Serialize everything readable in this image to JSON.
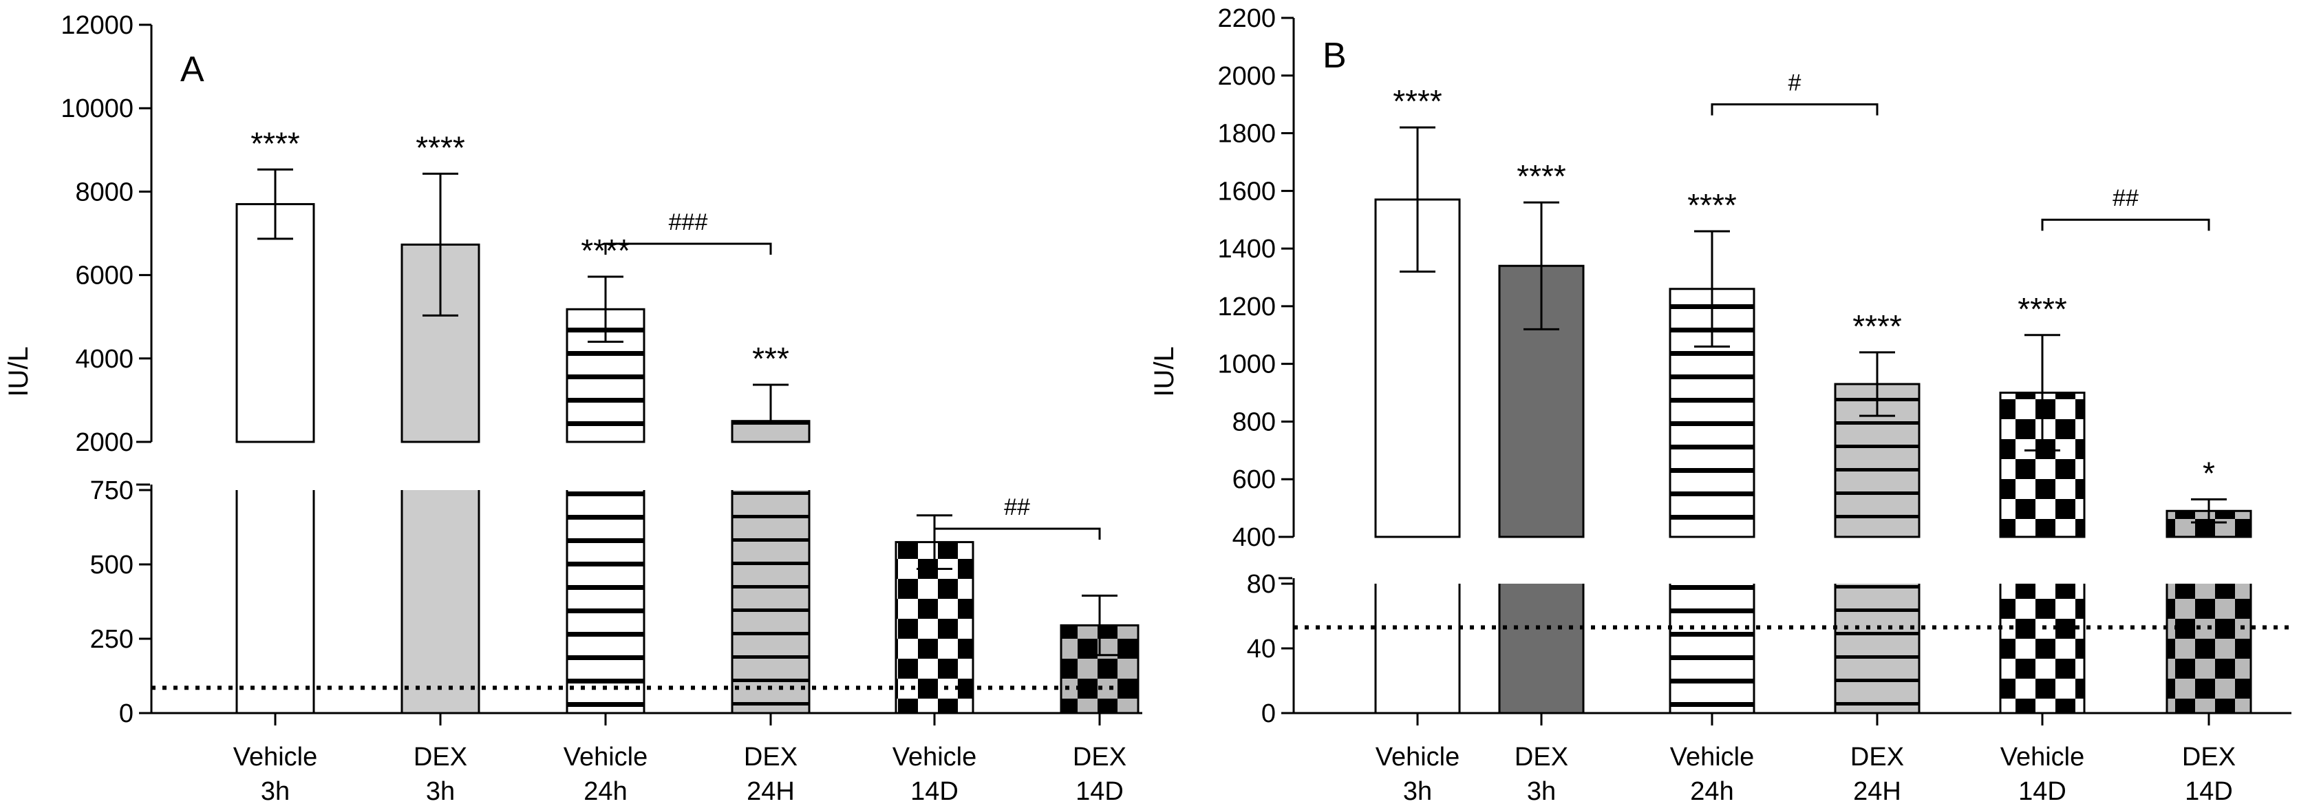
{
  "chart_data": [
    {
      "panel": "A",
      "type": "bar",
      "ylabel": "IU/L",
      "xlabel": "",
      "categories": [
        [
          "Vehicle",
          "3h"
        ],
        [
          "DEX",
          "3h"
        ],
        [
          "Vehicle",
          "24h"
        ],
        [
          "DEX",
          "24H"
        ],
        [
          "Vehicle",
          "14D"
        ],
        [
          "DEX",
          "14D"
        ]
      ],
      "values": [
        7700,
        6730,
        5180,
        2500,
        575,
        295
      ],
      "errors": [
        830,
        1700,
        780,
        870,
        90,
        100
      ],
      "patterns": [
        "white",
        "lightgray",
        "hstripe-white",
        "hstripe-gray",
        "checker-white",
        "checker-gray"
      ],
      "significance": [
        "****",
        "****",
        "****",
        "***",
        "",
        ""
      ],
      "brackets": [
        {
          "from": 2,
          "to": 3,
          "label": "###",
          "y": 6750
        },
        {
          "from": 4,
          "to": 5,
          "label": "##",
          "y": 620
        }
      ],
      "reference_line": 85,
      "axis_break": {
        "lower": {
          "ylim": [
            0,
            750
          ],
          "ticks": [
            0,
            250,
            500,
            750
          ],
          "tick_labels": [
            "0",
            "250",
            "500",
            "750"
          ]
        },
        "upper": {
          "ylim": [
            2000,
            12000
          ],
          "ticks": [
            2000,
            4000,
            6000,
            8000,
            10000,
            12000
          ],
          "tick_labels": [
            "2000",
            "4000",
            "6000",
            "8000",
            "10000",
            "12000"
          ]
        }
      }
    },
    {
      "panel": "B",
      "type": "bar",
      "ylabel": "IU/L",
      "xlabel": "",
      "categories": [
        [
          "Vehicle",
          "3h"
        ],
        [
          "DEX",
          "3h"
        ],
        [
          "Vehicle",
          "24h"
        ],
        [
          "DEX",
          "24H"
        ],
        [
          "Vehicle",
          "14D"
        ],
        [
          "DEX",
          "14D"
        ]
      ],
      "values": [
        1570,
        1340,
        1260,
        930,
        900,
        490
      ],
      "errors": [
        250,
        220,
        200,
        110,
        200,
        40
      ],
      "patterns": [
        "white",
        "darkgray",
        "hstripe-white",
        "hstripe-gray",
        "checker-white",
        "checker-gray"
      ],
      "significance": [
        "****",
        "****",
        "****",
        "****",
        "****",
        "*"
      ],
      "brackets": [
        {
          "from": 2,
          "to": 3,
          "label": "#",
          "y": 1900
        },
        {
          "from": 4,
          "to": 5,
          "label": "##",
          "y": 1500
        }
      ],
      "reference_line": 53,
      "axis_break": {
        "lower": {
          "ylim": [
            0,
            80
          ],
          "ticks": [
            0,
            40,
            80
          ],
          "tick_labels": [
            "0",
            "40",
            "80"
          ]
        },
        "upper": {
          "ylim": [
            400,
            2200
          ],
          "ticks": [
            400,
            600,
            800,
            1000,
            1200,
            1400,
            1600,
            1800,
            2000,
            2200
          ],
          "tick_labels": [
            "400",
            "600",
            "800",
            "1000",
            "1200",
            "1400",
            "1600",
            "1800",
            "2000",
            "2200"
          ]
        }
      }
    }
  ]
}
